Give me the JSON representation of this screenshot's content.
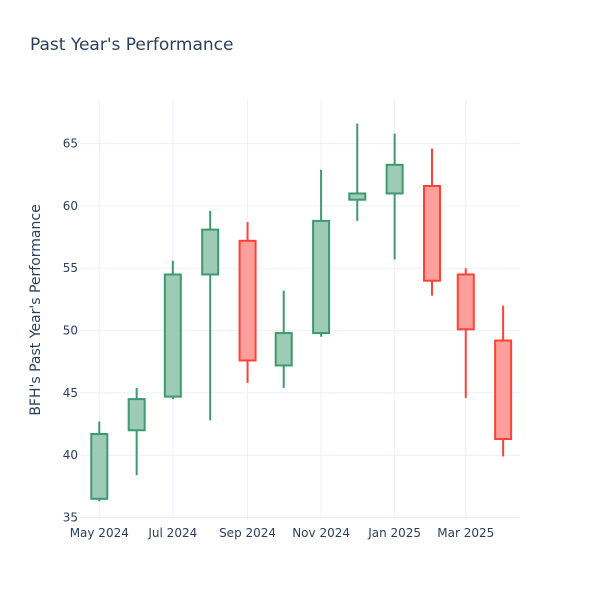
{
  "chart_data": {
    "type": "candlestick",
    "title": "Past Year's Performance",
    "xlabel": "",
    "ylabel": "BFH's Past Year's Performance",
    "ylim": [
      34.8,
      68.5
    ],
    "yticks": [
      35,
      40,
      45,
      50,
      55,
      60,
      65
    ],
    "xlim": [
      "2024-04-15",
      "2025-04-15"
    ],
    "xticks": [
      {
        "date": "2024-05-01",
        "label": "May 2024"
      },
      {
        "date": "2024-07-01",
        "label": "Jul 2024"
      },
      {
        "date": "2024-09-01",
        "label": "Sep 2024"
      },
      {
        "date": "2024-11-01",
        "label": "Nov 2024"
      },
      {
        "date": "2025-01-01",
        "label": "Jan 2025"
      },
      {
        "date": "2025-03-01",
        "label": "Mar 2025"
      }
    ],
    "grid": true,
    "colors": {
      "increasing_line": "#3d9970",
      "increasing_fill": "#9ecbb5",
      "decreasing_line": "#ff4136",
      "decreasing_fill": "#ff9f9b",
      "text": "#2a3f5f",
      "grid": "#ebf0f8"
    },
    "candles": [
      {
        "date": "2024-05-01",
        "open": 36.5,
        "high": 42.7,
        "low": 36.3,
        "close": 41.7
      },
      {
        "date": "2024-06-01",
        "open": 42.0,
        "high": 45.4,
        "low": 38.4,
        "close": 44.5
      },
      {
        "date": "2024-07-01",
        "open": 44.7,
        "high": 55.6,
        "low": 44.5,
        "close": 54.5
      },
      {
        "date": "2024-08-01",
        "open": 54.5,
        "high": 59.6,
        "low": 42.8,
        "close": 58.1
      },
      {
        "date": "2024-09-01",
        "open": 57.2,
        "high": 58.7,
        "low": 45.8,
        "close": 47.6
      },
      {
        "date": "2024-10-01",
        "open": 47.2,
        "high": 53.2,
        "low": 45.4,
        "close": 49.8
      },
      {
        "date": "2024-11-01",
        "open": 49.8,
        "high": 62.9,
        "low": 49.5,
        "close": 58.8
      },
      {
        "date": "2024-12-01",
        "open": 60.5,
        "high": 66.6,
        "low": 58.8,
        "close": 61.0
      },
      {
        "date": "2025-01-01",
        "open": 61.0,
        "high": 65.8,
        "low": 55.7,
        "close": 63.3
      },
      {
        "date": "2025-02-01",
        "open": 61.6,
        "high": 64.6,
        "low": 52.8,
        "close": 54.0
      },
      {
        "date": "2025-03-01",
        "open": 54.5,
        "high": 55.0,
        "low": 44.6,
        "close": 50.1
      },
      {
        "date": "2025-04-01",
        "open": 49.2,
        "high": 52.0,
        "low": 39.9,
        "close": 41.3
      }
    ]
  }
}
